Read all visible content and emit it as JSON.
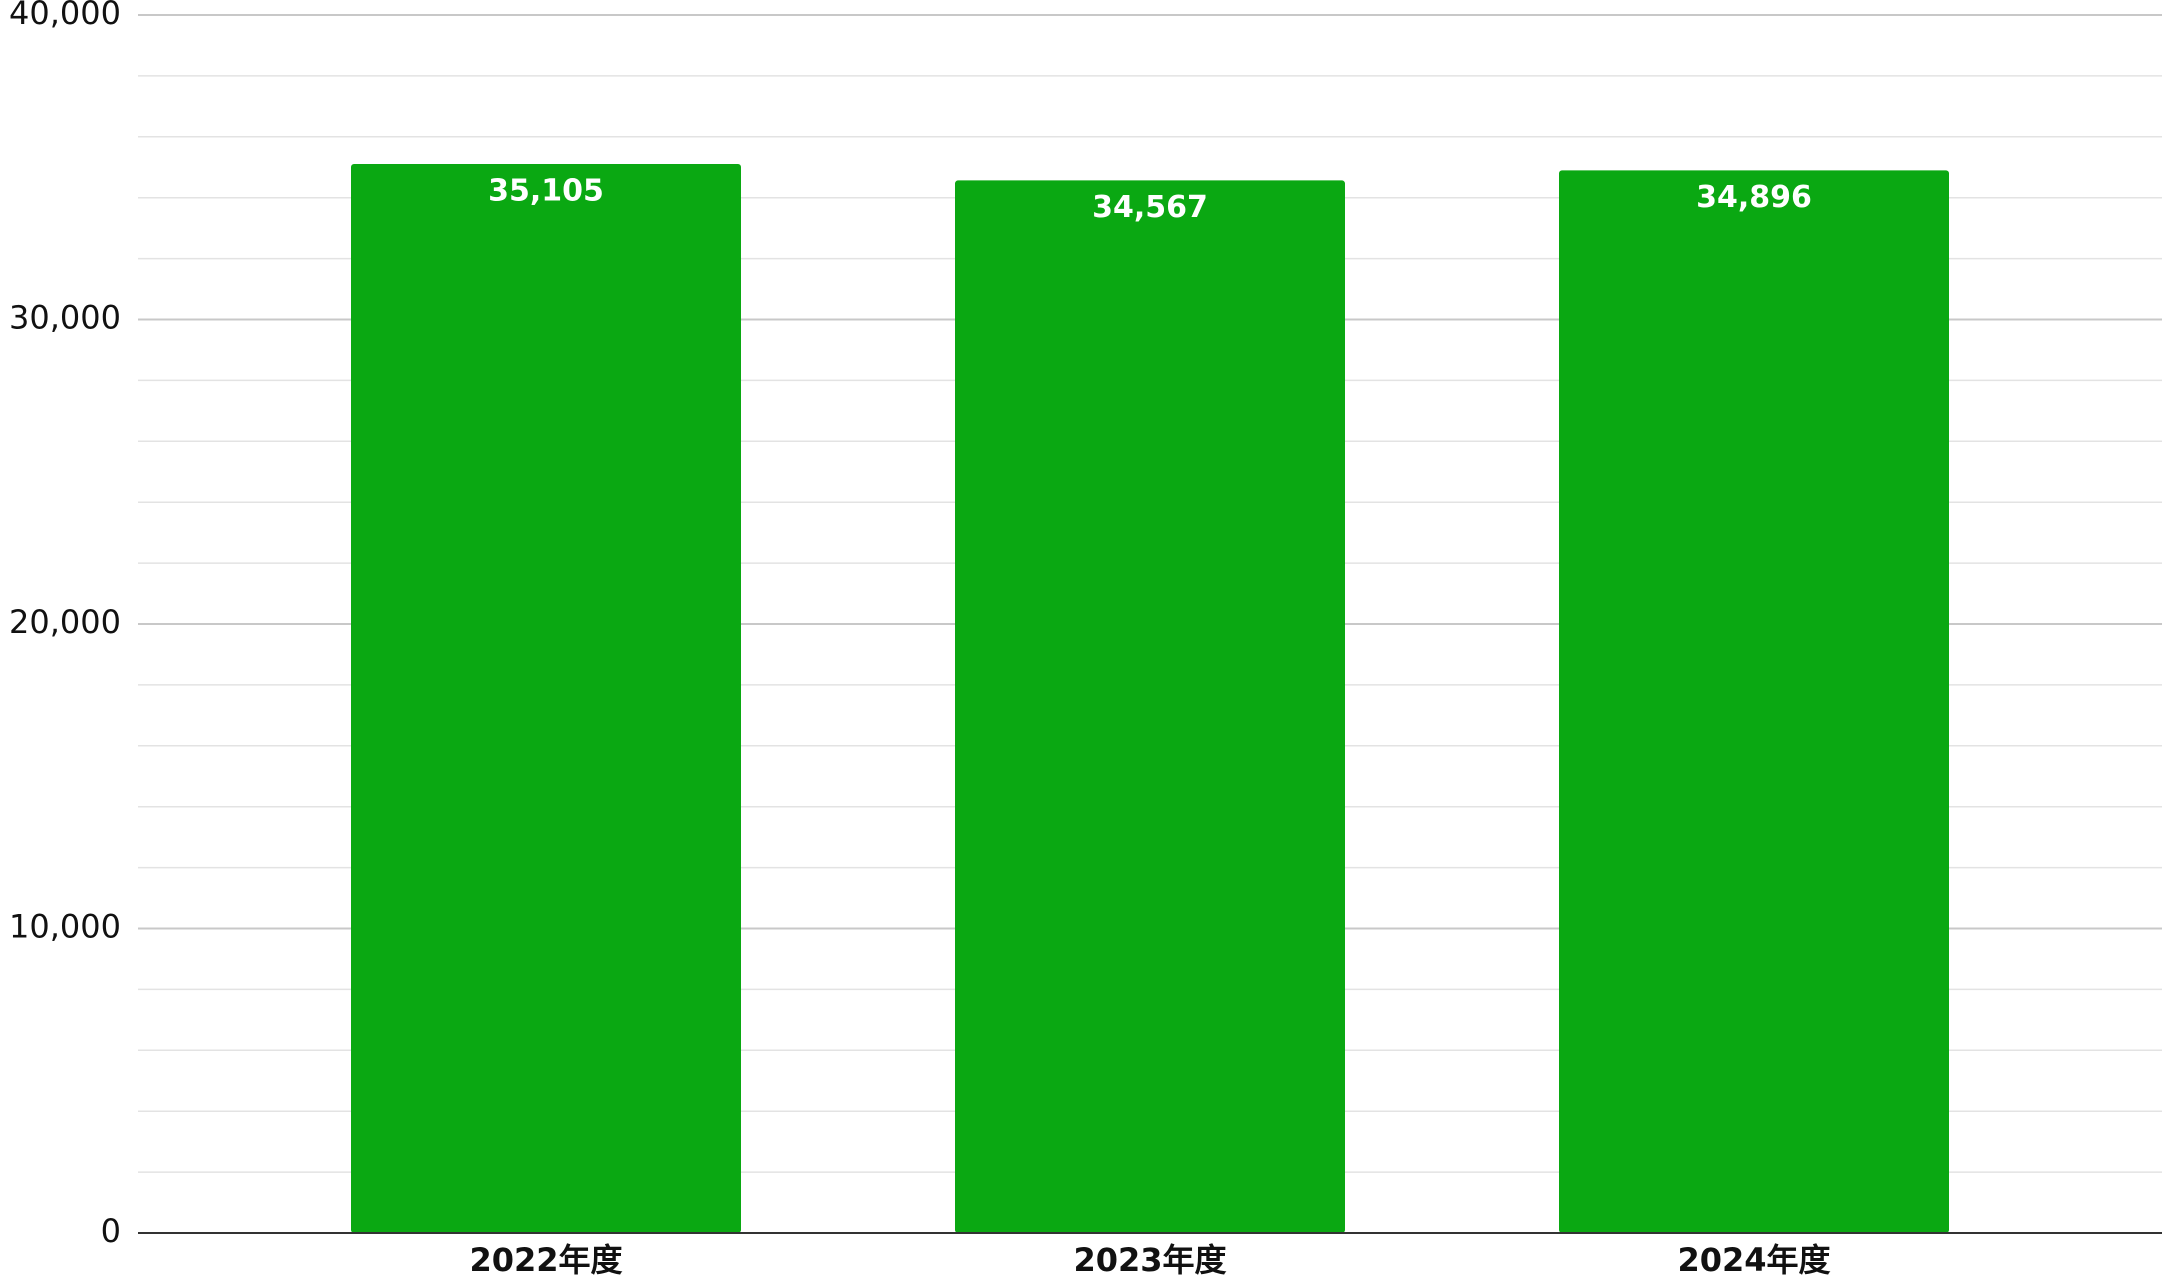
{
  "chart_data": {
    "type": "bar",
    "categories": [
      "2022年度",
      "2023年度",
      "2024年度"
    ],
    "values": [
      35105,
      34567,
      34896
    ],
    "value_labels": [
      "35,105",
      "34,567",
      "34,896"
    ],
    "color": "#0aa812",
    "ylim": [
      0,
      40000
    ],
    "yticks": [
      0,
      {
        "value": 10000,
        "label": "10,000"
      },
      {
        "value": 20000,
        "label": "20,000"
      },
      {
        "value": 30000,
        "label": "30,000"
      },
      {
        "value": 40000,
        "label": "40,000"
      }
    ],
    "minor_yticks": [
      2000,
      4000,
      6000,
      8000,
      12000,
      14000,
      16000,
      18000,
      22000,
      24000,
      26000,
      28000,
      32000,
      34000,
      36000,
      38000
    ],
    "grid": true
  }
}
